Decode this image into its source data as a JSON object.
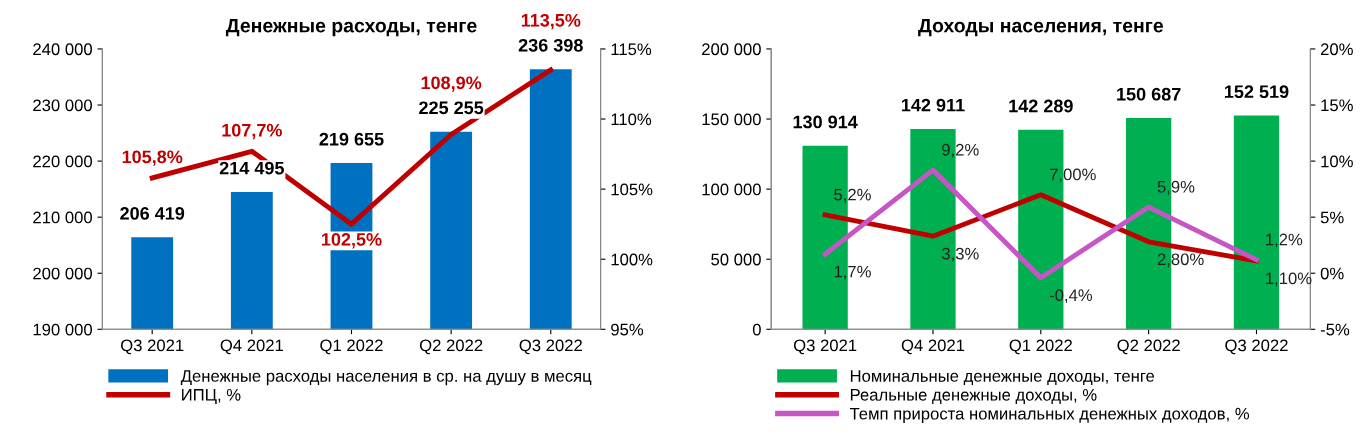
{
  "chart_data": [
    {
      "type": "bar",
      "title": "Денежные расходы, тенге",
      "categories": [
        "Q3 2021",
        "Q4 2021",
        "Q1 2022",
        "Q2 2022",
        "Q3 2022"
      ],
      "ylim": [
        190000,
        240000
      ],
      "yticks": [
        {
          "value": 190000,
          "label": "190 000"
        },
        {
          "value": 200000,
          "label": "200 000"
        },
        {
          "value": 210000,
          "label": "210 000"
        },
        {
          "value": 220000,
          "label": "220 000"
        },
        {
          "value": 230000,
          "label": "230 000"
        },
        {
          "value": 240000,
          "label": "240 000"
        }
      ],
      "y2lim": [
        95,
        115
      ],
      "y2ticks": [
        {
          "value": 95,
          "label": "95%"
        },
        {
          "value": 100,
          "label": "100%"
        },
        {
          "value": 105,
          "label": "105%"
        },
        {
          "value": 110,
          "label": "110%"
        },
        {
          "value": 115,
          "label": "115%"
        }
      ],
      "legend": "bottom",
      "grid": false,
      "series": [
        {
          "name": "Денежные расходы населения в ср. на душу в месяц",
          "color": "#0070c0",
          "values": [
            206419,
            214495,
            219655,
            225255,
            236398
          ],
          "value_labels": [
            "206 419",
            "214 495",
            "219 655",
            "225 255",
            "236 398"
          ]
        },
        {
          "name": "ИПЦ, %",
          "type": "line",
          "axis": "y2",
          "color": "#c00000",
          "values": [
            105.8,
            107.7,
            102.5,
            108.9,
            113.5
          ],
          "value_labels": [
            "105,8%",
            "107,7%",
            "102,5%",
            "108,9%",
            "113,5%"
          ]
        }
      ]
    },
    {
      "type": "bar",
      "title": "Доходы населения, тенге",
      "categories": [
        "Q3 2021",
        "Q4 2021",
        "Q1 2022",
        "Q2 2022",
        "Q3 2022"
      ],
      "ylim": [
        0,
        200000
      ],
      "yticks": [
        0,
        {
          "value": 50000,
          "label": "50 000"
        },
        {
          "value": 100000,
          "label": "100 000"
        },
        {
          "value": 150000,
          "label": "150 000"
        },
        {
          "value": 200000,
          "label": "200 000"
        }
      ],
      "y2lim": [
        -5,
        20
      ],
      "y2ticks": [
        {
          "value": -5,
          "label": "-5%"
        },
        {
          "value": 0,
          "label": "0%"
        },
        {
          "value": 5,
          "label": "5%"
        },
        {
          "value": 10,
          "label": "10%"
        },
        {
          "value": 15,
          "label": "15%"
        },
        {
          "value": 20,
          "label": "20%"
        }
      ],
      "legend": "bottom",
      "grid": false,
      "series": [
        {
          "name": "Номинальные денежные доходы, тенге",
          "color": "#00b050",
          "values": [
            130914,
            142911,
            142289,
            150687,
            152519
          ],
          "value_labels": [
            "130 914",
            "142 911",
            "142 289",
            "150 687",
            "152 519"
          ]
        },
        {
          "name": "Реальные денежные доходы, %",
          "type": "line",
          "axis": "y2",
          "color": "#c00000",
          "values": [
            5.2,
            3.3,
            7.0,
            2.8,
            1.1
          ],
          "value_labels": [
            "5,2%",
            "3,3%",
            "7,00%",
            "2,80%",
            "1,10%"
          ]
        },
        {
          "name": "Темп прироста номинальных денежных доходов, %",
          "type": "line",
          "axis": "y2",
          "color": "#c655c6",
          "values": [
            1.7,
            9.2,
            -0.4,
            5.9,
            1.2
          ],
          "value_labels": [
            "1,7%",
            "9,2%",
            "-0,4%",
            "5,9%",
            "1,2%"
          ]
        }
      ]
    }
  ]
}
